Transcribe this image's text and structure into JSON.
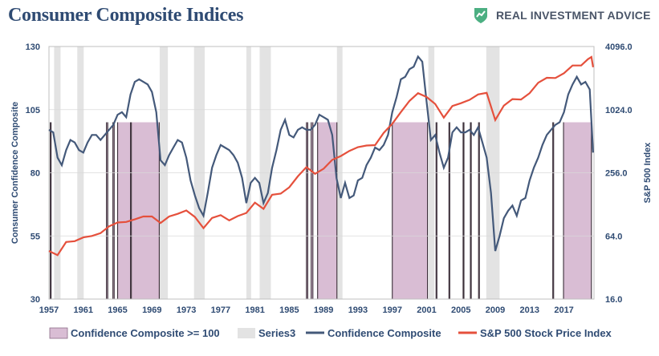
{
  "header": {
    "title": "Consumer Composite Indices",
    "brand_name": "REAL INVESTMENT ADVICE",
    "brand_icon": "chart-shield-icon",
    "brand_color": "#4caf82"
  },
  "colors": {
    "confidence_line": "#44597a",
    "sp500_line": "#e5503c",
    "confidence_fill": "#d9bdd4",
    "series3_fill": "#e3e3e3",
    "axis_text": "#2f4b73"
  },
  "chart_data": {
    "type": "line",
    "title": "",
    "left_axis": {
      "label": "Consumer Confidence Composite",
      "ylim": [
        30,
        130
      ],
      "ticks": [
        30,
        55,
        80,
        105,
        130
      ],
      "tick_labels": [
        "30",
        "55",
        "80",
        "105",
        "130"
      ]
    },
    "right_axis": {
      "label": "S&P 500 Index",
      "scale": "log",
      "ylim": [
        16,
        4096
      ],
      "ticks": [
        16,
        64,
        256,
        1024,
        4096
      ],
      "tick_labels": [
        "16.0",
        "64.0",
        "256.0",
        "1024.0",
        "4096.0"
      ]
    },
    "x_axis": {
      "xlim": [
        1957,
        2020.5
      ],
      "ticks": [
        1957,
        1961,
        1965,
        1969,
        1973,
        1977,
        1981,
        1985,
        1989,
        1993,
        1997,
        2001,
        2005,
        2009,
        2013,
        2017
      ],
      "tick_labels": [
        "1957",
        "1961",
        "1965",
        "1969",
        "1973",
        "1977",
        "1981",
        "1985",
        "1989",
        "1993",
        "1997",
        "2001",
        "2005",
        "2009",
        "2013",
        "2017"
      ]
    },
    "legend": {
      "placement": "bottom",
      "entries": [
        "Confidence Composite >= 100",
        "Series3",
        "Confidence Composite",
        "S&P 500 Stock Price Index"
      ]
    },
    "series": [
      {
        "name": "Confidence Composite",
        "axis": "left",
        "x": [
          1957.0,
          1957.5,
          1958.0,
          1958.5,
          1959.0,
          1959.5,
          1960.0,
          1960.5,
          1961.0,
          1961.5,
          1962.0,
          1962.5,
          1963.0,
          1963.5,
          1964.0,
          1964.5,
          1965.0,
          1965.5,
          1966.0,
          1966.5,
          1967.0,
          1967.5,
          1968.0,
          1968.5,
          1969.0,
          1969.5,
          1970.0,
          1970.5,
          1971.0,
          1971.5,
          1972.0,
          1972.5,
          1973.0,
          1973.5,
          1974.0,
          1974.5,
          1975.0,
          1975.5,
          1976.0,
          1976.5,
          1977.0,
          1977.5,
          1978.0,
          1978.5,
          1979.0,
          1979.5,
          1980.0,
          1980.5,
          1981.0,
          1981.5,
          1982.0,
          1982.5,
          1983.0,
          1983.5,
          1984.0,
          1984.5,
          1985.0,
          1985.5,
          1986.0,
          1986.5,
          1987.0,
          1987.5,
          1988.0,
          1988.5,
          1989.0,
          1989.5,
          1990.0,
          1990.5,
          1991.0,
          1991.5,
          1992.0,
          1992.5,
          1993.0,
          1993.5,
          1994.0,
          1994.5,
          1995.0,
          1995.5,
          1996.0,
          1996.5,
          1997.0,
          1997.5,
          1998.0,
          1998.5,
          1999.0,
          1999.5,
          2000.0,
          2000.5,
          2001.0,
          2001.5,
          2002.0,
          2002.5,
          2003.0,
          2003.5,
          2004.0,
          2004.5,
          2005.0,
          2005.5,
          2006.0,
          2006.5,
          2007.0,
          2007.5,
          2008.0,
          2008.5,
          2009.0,
          2009.5,
          2010.0,
          2010.5,
          2011.0,
          2011.5,
          2012.0,
          2012.5,
          2013.0,
          2013.5,
          2014.0,
          2014.5,
          2015.0,
          2015.5,
          2016.0,
          2016.5,
          2017.0,
          2017.5,
          2018.0,
          2018.5,
          2019.0,
          2019.5,
          2020.0,
          2020.4
        ],
        "values": [
          97,
          96,
          86,
          83,
          89,
          93,
          92,
          89,
          88,
          92,
          95,
          95,
          93,
          95,
          97,
          99,
          103,
          104,
          102,
          111,
          116,
          117,
          116,
          115,
          112,
          104,
          85,
          83,
          87,
          90,
          93,
          92,
          86,
          77,
          71,
          66,
          63,
          72,
          82,
          87,
          91,
          90,
          89,
          87,
          84,
          78,
          68,
          76,
          78,
          76,
          68,
          72,
          82,
          89,
          97,
          101,
          95,
          94,
          97,
          98,
          97,
          97,
          99,
          103,
          102,
          101,
          95,
          78,
          70,
          76,
          70,
          71,
          77,
          78,
          83,
          86,
          90,
          89,
          91,
          95,
          104,
          110,
          117,
          118,
          121,
          122,
          126,
          124,
          108,
          93,
          95,
          88,
          82,
          86,
          96,
          98,
          96,
          96,
          97,
          95,
          98,
          92,
          86,
          72,
          49,
          55,
          62,
          65,
          67,
          63,
          69,
          70,
          77,
          82,
          86,
          91,
          95,
          97,
          99,
          100,
          104,
          111,
          115,
          118,
          115,
          116,
          113,
          88
        ]
      },
      {
        "name": "S&P 500 Stock Price Index",
        "axis": "right",
        "x": [
          1957.0,
          1958.0,
          1959.0,
          1960.0,
          1961.0,
          1962.0,
          1963.0,
          1964.0,
          1965.0,
          1966.0,
          1967.0,
          1968.0,
          1969.0,
          1970.0,
          1971.0,
          1972.0,
          1973.0,
          1974.0,
          1975.0,
          1976.0,
          1977.0,
          1978.0,
          1979.0,
          1980.0,
          1981.0,
          1982.0,
          1983.0,
          1984.0,
          1985.0,
          1986.0,
          1987.0,
          1988.0,
          1989.0,
          1990.0,
          1991.0,
          1992.0,
          1993.0,
          1994.0,
          1995.0,
          1996.0,
          1997.0,
          1998.0,
          1999.0,
          2000.0,
          2001.0,
          2002.0,
          2003.0,
          2004.0,
          2005.0,
          2006.0,
          2007.0,
          2008.0,
          2009.0,
          2010.0,
          2011.0,
          2012.0,
          2013.0,
          2014.0,
          2015.0,
          2016.0,
          2017.0,
          2018.0,
          2019.0,
          2019.8,
          2020.2,
          2020.4
        ],
        "values": [
          46,
          42,
          56,
          57,
          62,
          64,
          68,
          79,
          86,
          87,
          92,
          98,
          98,
          85,
          98,
          104,
          112,
          97,
          76,
          95,
          101,
          90,
          99,
          106,
          133,
          116,
          158,
          162,
          186,
          237,
          290,
          250,
          280,
          340,
          370,
          414,
          450,
          466,
          470,
          615,
          750,
          970,
          1240,
          1470,
          1350,
          1160,
          860,
          1110,
          1180,
          1270,
          1430,
          1480,
          815,
          1120,
          1290,
          1280,
          1470,
          1850,
          2060,
          2050,
          2280,
          2700,
          2700,
          3100,
          3250,
          2600
        ]
      }
    ],
    "shaded_confidence_ge_100": [
      [
        1957.15,
        1957.25
      ],
      [
        1963.7,
        1963.85
      ],
      [
        1964.45,
        1964.6
      ],
      [
        1965.0,
        1966.5
      ],
      [
        1966.6,
        1969.85
      ],
      [
        1987.0,
        1987.15
      ],
      [
        1987.55,
        1987.75
      ],
      [
        1988.3,
        1990.55
      ],
      [
        1997.0,
        2001.1
      ],
      [
        2002.1,
        2002.2
      ],
      [
        2003.6,
        2003.7
      ],
      [
        2005.25,
        2005.35
      ],
      [
        2006.1,
        2006.2
      ],
      [
        2007.05,
        2007.15
      ],
      [
        2015.7,
        2015.8
      ],
      [
        2016.95,
        2020.2
      ]
    ],
    "shaded_series3": [
      [
        1957.6,
        1958.35
      ],
      [
        1960.3,
        1961.05
      ],
      [
        1969.9,
        1970.85
      ],
      [
        1973.9,
        1975.15
      ],
      [
        1980.0,
        1980.55
      ],
      [
        1981.55,
        1982.85
      ],
      [
        1990.55,
        1991.2
      ],
      [
        2001.2,
        2001.9
      ],
      [
        2007.95,
        2009.5
      ]
    ]
  },
  "legend_labels": {
    "confidence_ge_100": "Confidence Composite >= 100",
    "series3": "Series3",
    "confidence": "Confidence Composite",
    "sp500": "S&P 500 Stock Price Index"
  }
}
